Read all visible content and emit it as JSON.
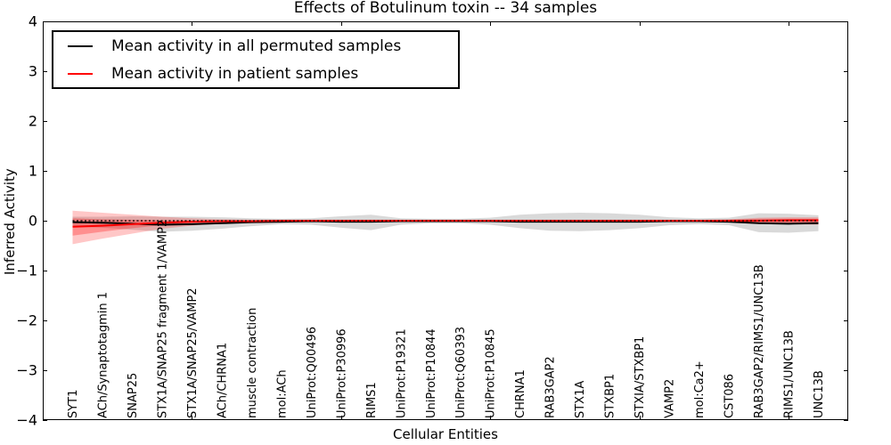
{
  "figure": {
    "background": "#ffffff",
    "frame_color": "#000000"
  },
  "chart_data": {
    "type": "line",
    "title": "Effects of Botulinum toxin -- 34 samples",
    "xlabel": "Cellular Entities",
    "ylabel": "Inferred Activity",
    "ylim": [
      -4,
      4
    ],
    "xlim": [
      0,
      27
    ],
    "grid": false,
    "ytick_values": [
      4,
      3,
      2,
      1,
      0,
      -1,
      -2,
      -3,
      -4
    ],
    "ytick_labels": [
      "4",
      "3",
      "2",
      "1",
      "0",
      "−1",
      "−2",
      "−3",
      "−4"
    ],
    "xtick_data_positions": [
      5,
      10,
      15,
      20,
      25
    ],
    "categories": [
      "SYT1",
      "ACh/Synaptotagmin 1",
      "SNAP25",
      "STX1A/SNAP25 fragment 1/VAMP2",
      "STX1A/SNAP25/VAMP2",
      "ACh/CHRNA1",
      "muscle contraction",
      "mol:ACh",
      "UniProt:Q00496",
      "UniProt:P30996",
      "RIMS1",
      "UniProt:P19321",
      "UniProt:P10844",
      "UniProt:Q60393",
      "UniProt:P10845",
      "CHRNA1",
      "RAB3GAP2",
      "STX1A",
      "STXBP1",
      "STXIA/STXBP1",
      "VAMP2",
      "mol:Ca2+",
      "CST086",
      "RAB3GAP2/RIMS1/UNC13B",
      "RIMS1/UNC13B",
      "UNC13B"
    ],
    "series": [
      {
        "name": "Mean activity in all permuted samples",
        "color": "#000000",
        "width": 2,
        "values": [
          -0.03,
          -0.04,
          -0.06,
          -0.08,
          -0.07,
          -0.05,
          -0.03,
          -0.02,
          -0.01,
          -0.02,
          -0.02,
          -0.01,
          -0.01,
          -0.01,
          -0.01,
          -0.02,
          -0.02,
          -0.02,
          -0.02,
          -0.02,
          -0.01,
          -0.01,
          -0.02,
          -0.05,
          -0.06,
          -0.05
        ]
      },
      {
        "name": "Mean activity in patient samples",
        "color": "#ff0000",
        "width": 2,
        "values": [
          -0.12,
          -0.1,
          -0.07,
          -0.04,
          -0.02,
          -0.01,
          -0.01,
          0,
          0,
          0,
          0,
          0,
          0,
          0,
          0,
          0,
          0,
          0,
          0,
          0,
          0,
          0,
          0,
          0,
          0.01,
          0.01
        ]
      }
    ],
    "bands": [
      {
        "name": "permuted-samples-range",
        "color": "rgba(0,0,0,0.15)",
        "upper": [
          0.08,
          0.08,
          0.09,
          0.08,
          0.08,
          0.07,
          0.05,
          0.04,
          0.05,
          0.09,
          0.12,
          0.05,
          0.04,
          0.04,
          0.06,
          0.12,
          0.15,
          0.16,
          0.15,
          0.12,
          0.07,
          0.05,
          0.06,
          0.15,
          0.14,
          0.11
        ],
        "lower": [
          -0.12,
          -0.14,
          -0.18,
          -0.22,
          -0.2,
          -0.16,
          -0.11,
          -0.07,
          -0.08,
          -0.14,
          -0.19,
          -0.08,
          -0.05,
          -0.05,
          -0.08,
          -0.15,
          -0.2,
          -0.21,
          -0.19,
          -0.15,
          -0.09,
          -0.07,
          -0.09,
          -0.23,
          -0.24,
          -0.21
        ]
      },
      {
        "name": "patient-samples-range-outer",
        "color": "rgba(255,0,0,0.22)",
        "upper": [
          0.2,
          0.16,
          0.12,
          0.08,
          0.05,
          0.03,
          0.02,
          0.02,
          0.02,
          0.02,
          0.02,
          0.02,
          0.02,
          0.02,
          0.02,
          0.02,
          0.02,
          0.02,
          0.02,
          0.02,
          0.02,
          0.02,
          0.03,
          0.06,
          0.07,
          0.07
        ],
        "lower": [
          -0.47,
          -0.36,
          -0.26,
          -0.16,
          -0.1,
          -0.05,
          -0.03,
          -0.02,
          -0.02,
          -0.02,
          -0.02,
          -0.02,
          -0.02,
          -0.02,
          -0.02,
          -0.02,
          -0.02,
          -0.02,
          -0.02,
          -0.02,
          -0.02,
          -0.02,
          -0.03,
          -0.05,
          -0.07,
          -0.08
        ],
        "note": "wide red wedge at left, re-widens at right end"
      },
      {
        "name": "patient-samples-range-inner",
        "color": "rgba(255,0,0,0.28)",
        "upper": [
          0.05,
          0.03,
          0.02,
          0.01,
          0.01,
          0.01,
          0.01,
          0.01,
          0.01,
          0.01,
          0.01,
          0.01,
          0.01,
          0.01,
          0.01,
          0.01,
          0.01,
          0.01,
          0.01,
          0.01,
          0.01,
          0.01,
          0.02,
          0.04,
          0.04,
          0.04
        ],
        "lower": [
          -0.3,
          -0.22,
          -0.15,
          -0.09,
          -0.05,
          -0.03,
          -0.02,
          -0.01,
          -0.01,
          -0.01,
          -0.01,
          -0.01,
          -0.01,
          -0.01,
          -0.01,
          -0.01,
          -0.01,
          -0.01,
          -0.01,
          -0.01,
          -0.01,
          -0.01,
          -0.02,
          -0.03,
          -0.04,
          -0.04
        ]
      }
    ],
    "zero_line": {
      "y": 0,
      "color": "#000000",
      "style": "dotted"
    },
    "legend": {
      "position": "upper left",
      "entries": [
        {
          "label": "Mean activity in all permuted samples",
          "color": "#000000"
        },
        {
          "label": "Mean activity in patient samples",
          "color": "#ff0000"
        }
      ]
    }
  }
}
